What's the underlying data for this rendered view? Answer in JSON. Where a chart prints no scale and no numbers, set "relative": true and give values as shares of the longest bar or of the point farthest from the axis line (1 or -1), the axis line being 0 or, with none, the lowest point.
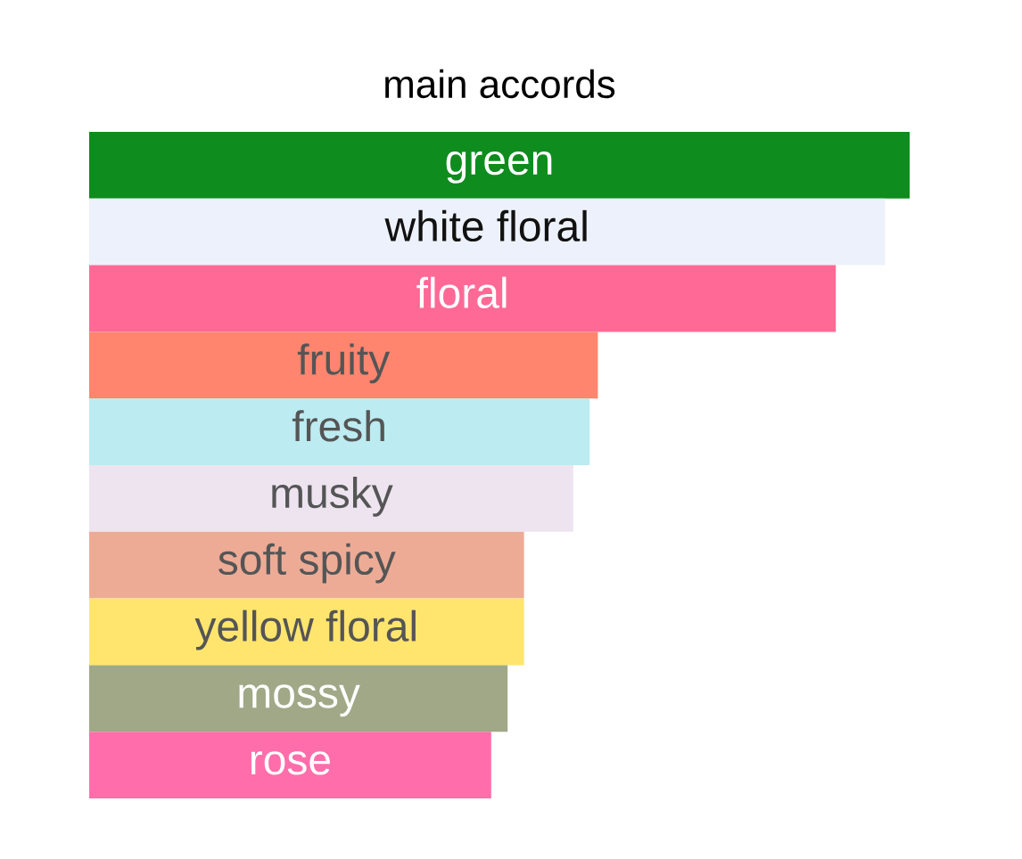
{
  "chart_data": {
    "type": "bar",
    "title": "main accords",
    "orientation": "horizontal",
    "relative": true,
    "categories": [
      "green",
      "white floral",
      "floral",
      "fruity",
      "fresh",
      "musky",
      "soft spicy",
      "yellow floral",
      "mossy",
      "rose"
    ],
    "values": [
      1,
      0.97,
      0.91,
      0.62,
      0.61,
      0.59,
      0.53,
      0.53,
      0.51,
      0.49
    ],
    "colors": [
      "#0e8c1e",
      "#edf1fb",
      "#ff6996",
      "#ff856e",
      "#bcebf1",
      "#ede4f0",
      "#edab96",
      "#ffe56e",
      "#a0a887",
      "#ff6eaa"
    ]
  }
}
